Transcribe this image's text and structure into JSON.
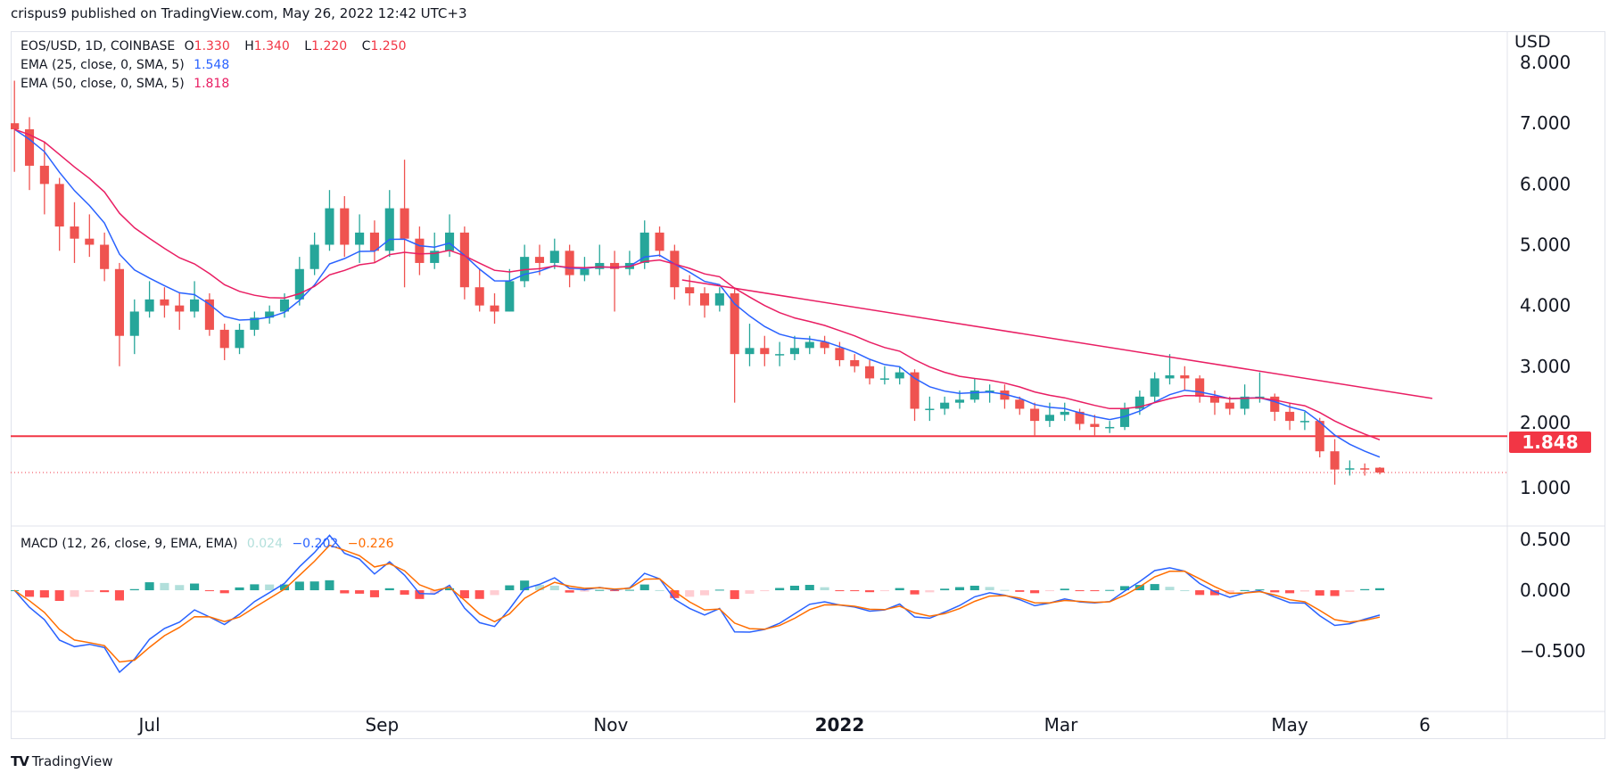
{
  "header": {
    "published": "crispus9 published on TradingView.com, May 26, 2022 12:42 UTC+3"
  },
  "legend": {
    "symbol": "EOS/USD, 1D, COINBASE",
    "o_label": "O",
    "o_value": "1.330",
    "h_label": "H",
    "h_value": "1.340",
    "l_label": "L",
    "l_value": "1.220",
    "c_label": "C",
    "c_value": "1.250",
    "ema25_label": "EMA (25, close, 0, SMA, 5)",
    "ema25_value": "1.548",
    "ema50_label": "EMA (50, close, 0, SMA, 5)",
    "ema50_value": "1.818",
    "macd_label": "MACD (12, 26, close, 9, EMA, EMA)",
    "macd_hist": "0.024",
    "macd_value": "−0.202",
    "macd_signal": "−0.226"
  },
  "axis": {
    "currency": "USD",
    "price_tag": "1.848"
  },
  "footer": {
    "brand": "TradingView"
  },
  "colors": {
    "up": "#26a69a",
    "down": "#ef5350",
    "ema25": "#2962ff",
    "ema50": "#e91e63",
    "support": "#f23645",
    "trendline": "#e91e63",
    "macd": "#2962ff",
    "signal": "#ff6d00"
  },
  "chart_data": [
    {
      "type": "candlestick",
      "title": "EOS/USD, 1D, COINBASE",
      "ylim": [
        0.37,
        8.5
      ],
      "scale": "linear",
      "grid": false,
      "y_ticks": [
        "8.000",
        "7.000",
        "6.000",
        "5.000",
        "4.000",
        "3.000",
        "2.000",
        "1.000"
      ],
      "y_tick_values": [
        8,
        7,
        6,
        5,
        4,
        3,
        2,
        1
      ],
      "x_ticks": [
        {
          "label": "Jul",
          "date": "2021-07-01",
          "bold": false
        },
        {
          "label": "Sep",
          "date": "2021-09-01",
          "bold": false
        },
        {
          "label": "Nov",
          "date": "2021-11-01",
          "bold": false
        },
        {
          "label": "2022",
          "date": "2022-01-01",
          "bold": true
        },
        {
          "label": "Mar",
          "date": "2022-03-01",
          "bold": false
        },
        {
          "label": "May",
          "date": "2022-05-01",
          "bold": false
        },
        {
          "label": "6",
          "date": "2022-06-06",
          "bold": false
        }
      ],
      "x_range": [
        "2021-05-25",
        "2022-06-28"
      ],
      "candles": [
        [
          "2021-05-26",
          7.0,
          7.7,
          6.2,
          6.9
        ],
        [
          "2021-05-30",
          6.9,
          7.1,
          5.9,
          6.3
        ],
        [
          "2021-06-03",
          6.3,
          6.7,
          5.5,
          6.0
        ],
        [
          "2021-06-07",
          6.0,
          6.1,
          4.9,
          5.3
        ],
        [
          "2021-06-11",
          5.3,
          5.7,
          4.7,
          5.1
        ],
        [
          "2021-06-15",
          5.1,
          5.5,
          4.8,
          5.0
        ],
        [
          "2021-06-19",
          5.0,
          5.2,
          4.4,
          4.6
        ],
        [
          "2021-06-23",
          4.6,
          4.7,
          3.0,
          3.5
        ],
        [
          "2021-06-27",
          3.5,
          4.1,
          3.2,
          3.9
        ],
        [
          "2021-07-01",
          3.9,
          4.4,
          3.8,
          4.1
        ],
        [
          "2021-07-05",
          4.1,
          4.3,
          3.8,
          4.0
        ],
        [
          "2021-07-09",
          4.0,
          4.2,
          3.6,
          3.9
        ],
        [
          "2021-07-13",
          3.9,
          4.4,
          3.8,
          4.1
        ],
        [
          "2021-07-17",
          4.1,
          4.2,
          3.5,
          3.6
        ],
        [
          "2021-07-21",
          3.6,
          3.7,
          3.1,
          3.3
        ],
        [
          "2021-07-25",
          3.3,
          3.7,
          3.2,
          3.6
        ],
        [
          "2021-07-29",
          3.6,
          3.9,
          3.5,
          3.8
        ],
        [
          "2021-08-02",
          3.8,
          4.0,
          3.7,
          3.9
        ],
        [
          "2021-08-06",
          3.9,
          4.2,
          3.8,
          4.1
        ],
        [
          "2021-08-10",
          4.1,
          4.8,
          4.0,
          4.6
        ],
        [
          "2021-08-14",
          4.6,
          5.2,
          4.5,
          5.0
        ],
        [
          "2021-08-18",
          5.0,
          5.9,
          4.9,
          5.6
        ],
        [
          "2021-08-22",
          5.6,
          5.8,
          4.8,
          5.0
        ],
        [
          "2021-08-26",
          5.0,
          5.5,
          4.7,
          5.2
        ],
        [
          "2021-08-30",
          5.2,
          5.4,
          4.7,
          4.9
        ],
        [
          "2021-09-03",
          4.9,
          5.9,
          4.8,
          5.6
        ],
        [
          "2021-09-07",
          5.6,
          6.4,
          4.3,
          5.1
        ],
        [
          "2021-09-11",
          5.1,
          5.3,
          4.5,
          4.7
        ],
        [
          "2021-09-15",
          4.7,
          5.2,
          4.6,
          4.9
        ],
        [
          "2021-09-19",
          4.9,
          5.5,
          4.8,
          5.2
        ],
        [
          "2021-09-23",
          5.2,
          5.3,
          4.1,
          4.3
        ],
        [
          "2021-09-27",
          4.3,
          4.6,
          3.9,
          4.0
        ],
        [
          "2021-10-01",
          4.0,
          4.2,
          3.7,
          3.9
        ],
        [
          "2021-10-05",
          3.9,
          4.6,
          3.9,
          4.4
        ],
        [
          "2021-10-09",
          4.4,
          5.0,
          4.3,
          4.8
        ],
        [
          "2021-10-13",
          4.8,
          5.0,
          4.5,
          4.7
        ],
        [
          "2021-10-17",
          4.7,
          5.1,
          4.6,
          4.9
        ],
        [
          "2021-10-21",
          4.9,
          5.0,
          4.3,
          4.5
        ],
        [
          "2021-10-25",
          4.5,
          4.8,
          4.4,
          4.6
        ],
        [
          "2021-10-29",
          4.6,
          5.0,
          4.5,
          4.7
        ],
        [
          "2021-11-02",
          4.7,
          4.9,
          3.9,
          4.6
        ],
        [
          "2021-11-06",
          4.6,
          4.9,
          4.5,
          4.7
        ],
        [
          "2021-11-10",
          4.7,
          5.4,
          4.6,
          5.2
        ],
        [
          "2021-11-14",
          5.2,
          5.3,
          4.8,
          4.9
        ],
        [
          "2021-11-18",
          4.9,
          5.0,
          4.1,
          4.3
        ],
        [
          "2021-11-22",
          4.3,
          4.5,
          4.0,
          4.2
        ],
        [
          "2021-11-26",
          4.2,
          4.3,
          3.8,
          4.0
        ],
        [
          "2021-11-30",
          4.0,
          4.3,
          3.9,
          4.2
        ],
        [
          "2021-12-04",
          4.2,
          4.3,
          2.4,
          3.2
        ],
        [
          "2021-12-08",
          3.2,
          3.7,
          3.0,
          3.3
        ],
        [
          "2021-12-12",
          3.3,
          3.5,
          3.0,
          3.2
        ],
        [
          "2021-12-16",
          3.2,
          3.4,
          3.0,
          3.2
        ],
        [
          "2021-12-20",
          3.2,
          3.5,
          3.1,
          3.3
        ],
        [
          "2021-12-24",
          3.3,
          3.5,
          3.2,
          3.4
        ],
        [
          "2021-12-28",
          3.4,
          3.5,
          3.2,
          3.3
        ],
        [
          "2022-01-01",
          3.3,
          3.4,
          3.0,
          3.1
        ],
        [
          "2022-01-05",
          3.1,
          3.2,
          2.9,
          3.0
        ],
        [
          "2022-01-09",
          3.0,
          3.1,
          2.7,
          2.8
        ],
        [
          "2022-01-13",
          2.8,
          3.0,
          2.7,
          2.8
        ],
        [
          "2022-01-17",
          2.8,
          3.0,
          2.7,
          2.9
        ],
        [
          "2022-01-21",
          2.9,
          2.95,
          2.1,
          2.3
        ],
        [
          "2022-01-25",
          2.3,
          2.5,
          2.1,
          2.3
        ],
        [
          "2022-01-29",
          2.3,
          2.5,
          2.2,
          2.4
        ],
        [
          "2022-02-02",
          2.4,
          2.6,
          2.3,
          2.45
        ],
        [
          "2022-02-06",
          2.45,
          2.8,
          2.4,
          2.6
        ],
        [
          "2022-02-10",
          2.6,
          2.7,
          2.4,
          2.6
        ],
        [
          "2022-02-14",
          2.6,
          2.7,
          2.3,
          2.45
        ],
        [
          "2022-02-18",
          2.45,
          2.5,
          2.2,
          2.3
        ],
        [
          "2022-02-22",
          2.3,
          2.4,
          1.85,
          2.1
        ],
        [
          "2022-02-26",
          2.1,
          2.4,
          2.0,
          2.2
        ],
        [
          "2022-03-02",
          2.2,
          2.4,
          2.1,
          2.25
        ],
        [
          "2022-03-06",
          2.25,
          2.3,
          1.95,
          2.05
        ],
        [
          "2022-03-10",
          2.05,
          2.2,
          1.85,
          2.0
        ],
        [
          "2022-03-14",
          2.0,
          2.1,
          1.9,
          2.0
        ],
        [
          "2022-03-18",
          2.0,
          2.4,
          1.95,
          2.3
        ],
        [
          "2022-03-22",
          2.3,
          2.6,
          2.2,
          2.5
        ],
        [
          "2022-03-26",
          2.5,
          2.9,
          2.4,
          2.8
        ],
        [
          "2022-03-30",
          2.8,
          3.2,
          2.7,
          2.85
        ],
        [
          "2022-04-03",
          2.85,
          3.0,
          2.6,
          2.8
        ],
        [
          "2022-04-07",
          2.8,
          2.85,
          2.4,
          2.5
        ],
        [
          "2022-04-11",
          2.5,
          2.6,
          2.2,
          2.4
        ],
        [
          "2022-04-15",
          2.4,
          2.5,
          2.2,
          2.3
        ],
        [
          "2022-04-19",
          2.3,
          2.7,
          2.2,
          2.5
        ],
        [
          "2022-04-23",
          2.5,
          2.9,
          2.4,
          2.5
        ],
        [
          "2022-04-27",
          2.5,
          2.55,
          2.1,
          2.25
        ],
        [
          "2022-05-01",
          2.25,
          2.4,
          1.95,
          2.1
        ],
        [
          "2022-05-05",
          2.1,
          2.25,
          1.95,
          2.1
        ],
        [
          "2022-05-09",
          2.1,
          2.15,
          1.5,
          1.6
        ],
        [
          "2022-05-13",
          1.6,
          1.8,
          1.05,
          1.3
        ],
        [
          "2022-05-17",
          1.3,
          1.45,
          1.2,
          1.32
        ],
        [
          "2022-05-21",
          1.32,
          1.4,
          1.2,
          1.3
        ],
        [
          "2022-05-25",
          1.33,
          1.34,
          1.22,
          1.25
        ]
      ],
      "ema25_last": 1.548,
      "ema50_last": 1.818,
      "support_level": 1.848,
      "last_price": 1.25,
      "trendline": [
        [
          "2021-11-20",
          4.42
        ],
        [
          "2022-06-08",
          2.47
        ]
      ]
    },
    {
      "type": "macd",
      "title": "MACD (12, 26, close, 9, EMA, EMA)",
      "ylim": [
        -1.0,
        0.53
      ],
      "y_ticks": [
        "0.500",
        "0.000",
        "−0.500"
      ],
      "y_tick_values": [
        0.5,
        0,
        -0.5
      ],
      "last": {
        "histogram": 0.024,
        "macd": -0.202,
        "signal": -0.226
      }
    }
  ]
}
